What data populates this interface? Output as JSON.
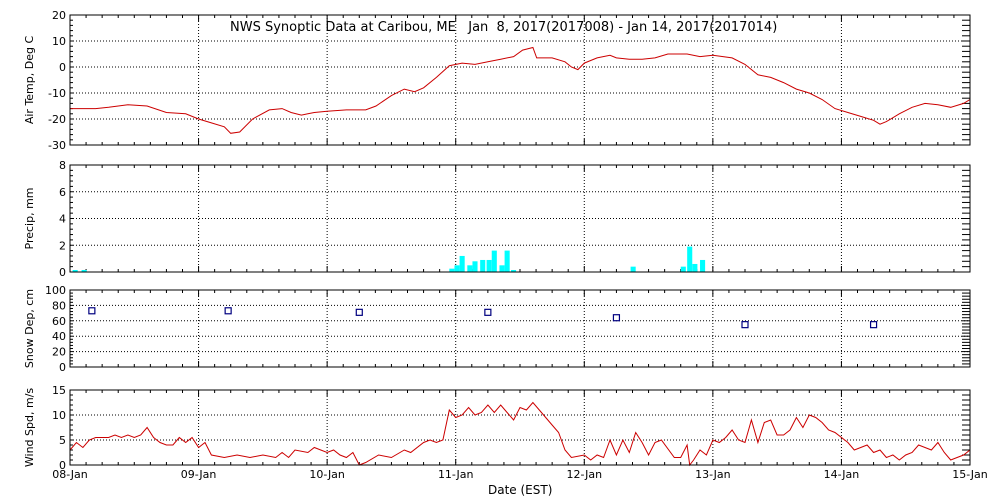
{
  "title": "NWS Synoptic Data at Caribou, ME   Jan  8, 2017(2017008) - Jan 14, 2017(2017014)",
  "xlabel": "Date (EST)",
  "x_ticks": [
    "08-Jan",
    "09-Jan",
    "10-Jan",
    "11-Jan",
    "12-Jan",
    "13-Jan",
    "14-Jan",
    "15-Jan"
  ],
  "colors": {
    "line": "#cc0000",
    "bar": "#00ffff",
    "marker": "#000080",
    "axis": "#000000"
  },
  "chart_data": [
    {
      "type": "line",
      "ylabel": "Air Temp, Deg C",
      "ylim": [
        -30,
        20
      ],
      "yticks": [
        -30,
        -20,
        -10,
        0,
        10,
        20
      ],
      "grid": true,
      "x_unit": "days since 08-Jan 00:00 EST",
      "points": [
        [
          0,
          -16
        ],
        [
          0.2,
          -16
        ],
        [
          0.3,
          -15.5
        ],
        [
          0.45,
          -14.5
        ],
        [
          0.6,
          -15
        ],
        [
          0.75,
          -17.5
        ],
        [
          0.9,
          -18
        ],
        [
          1.0,
          -20
        ],
        [
          1.1,
          -21.5
        ],
        [
          1.2,
          -23
        ],
        [
          1.25,
          -25.5
        ],
        [
          1.32,
          -25
        ],
        [
          1.42,
          -20
        ],
        [
          1.55,
          -16.5
        ],
        [
          1.65,
          -16
        ],
        [
          1.72,
          -17.5
        ],
        [
          1.8,
          -18.5
        ],
        [
          1.85,
          -18
        ],
        [
          1.9,
          -17.5
        ],
        [
          2.0,
          -17
        ],
        [
          2.15,
          -16.5
        ],
        [
          2.3,
          -16.5
        ],
        [
          2.38,
          -15
        ],
        [
          2.5,
          -11
        ],
        [
          2.6,
          -8.5
        ],
        [
          2.68,
          -9.5
        ],
        [
          2.75,
          -8
        ],
        [
          2.85,
          -4
        ],
        [
          2.95,
          0.5
        ],
        [
          3.05,
          1.5
        ],
        [
          3.15,
          1
        ],
        [
          3.25,
          2
        ],
        [
          3.35,
          3
        ],
        [
          3.45,
          4
        ],
        [
          3.52,
          6.5
        ],
        [
          3.6,
          7.5
        ],
        [
          3.63,
          3.5
        ],
        [
          3.75,
          3.5
        ],
        [
          3.85,
          2
        ],
        [
          3.9,
          0
        ],
        [
          3.95,
          -1
        ],
        [
          4.0,
          1.5
        ],
        [
          4.1,
          3.5
        ],
        [
          4.2,
          4.5
        ],
        [
          4.25,
          3.5
        ],
        [
          4.35,
          3
        ],
        [
          4.45,
          3
        ],
        [
          4.55,
          3.5
        ],
        [
          4.65,
          5
        ],
        [
          4.8,
          5
        ],
        [
          4.9,
          4
        ],
        [
          5.0,
          4.5
        ],
        [
          5.15,
          3.5
        ],
        [
          5.25,
          1
        ],
        [
          5.35,
          -3
        ],
        [
          5.45,
          -4
        ],
        [
          5.55,
          -6
        ],
        [
          5.65,
          -8.5
        ],
        [
          5.75,
          -10
        ],
        [
          5.85,
          -12.5
        ],
        [
          5.95,
          -16
        ],
        [
          6.05,
          -17.5
        ],
        [
          6.15,
          -19
        ],
        [
          6.25,
          -20.5
        ],
        [
          6.3,
          -22
        ],
        [
          6.35,
          -21
        ],
        [
          6.45,
          -18
        ],
        [
          6.55,
          -15.5
        ],
        [
          6.65,
          -14
        ],
        [
          6.75,
          -14.5
        ],
        [
          6.85,
          -15.5
        ],
        [
          6.95,
          -14
        ],
        [
          7.0,
          -12.5
        ]
      ]
    },
    {
      "type": "bar",
      "ylabel": "Precip, mm",
      "ylim": [
        0,
        8
      ],
      "yticks": [
        0,
        2,
        4,
        6,
        8
      ],
      "grid": true,
      "x_unit": "days since 08-Jan 00:00 EST",
      "bars": [
        [
          0.04,
          0.15
        ],
        [
          0.11,
          0.15
        ],
        [
          2.97,
          0.25
        ],
        [
          3.01,
          0.5
        ],
        [
          3.05,
          1.2
        ],
        [
          3.11,
          0.5
        ],
        [
          3.15,
          0.8
        ],
        [
          3.21,
          0.9
        ],
        [
          3.26,
          0.9
        ],
        [
          3.3,
          1.6
        ],
        [
          3.36,
          0.5
        ],
        [
          3.4,
          1.6
        ],
        [
          3.45,
          0.15
        ],
        [
          4.38,
          0.4
        ],
        [
          4.77,
          0.4
        ],
        [
          4.82,
          1.9
        ],
        [
          4.86,
          0.6
        ],
        [
          4.92,
          0.9
        ]
      ]
    },
    {
      "type": "scatter",
      "ylabel": "Snow Dep, cm",
      "ylim": [
        0,
        100
      ],
      "yticks": [
        0,
        20,
        40,
        60,
        80,
        100
      ],
      "grid": true,
      "x_unit": "days since 08-Jan 00:00 EST",
      "points": [
        [
          0.17,
          73
        ],
        [
          1.23,
          73
        ],
        [
          2.25,
          71
        ],
        [
          3.25,
          71
        ],
        [
          4.25,
          64
        ],
        [
          5.25,
          55
        ],
        [
          6.25,
          55
        ]
      ]
    },
    {
      "type": "line",
      "ylabel": "Wind Spd, m/s",
      "ylim": [
        0,
        15
      ],
      "yticks": [
        0,
        5,
        10,
        15
      ],
      "grid": true,
      "x_unit": "days since 08-Jan 00:00 EST",
      "points": [
        [
          0,
          3
        ],
        [
          0.05,
          4.5
        ],
        [
          0.1,
          3.5
        ],
        [
          0.15,
          5
        ],
        [
          0.2,
          5.5
        ],
        [
          0.3,
          5.5
        ],
        [
          0.35,
          6
        ],
        [
          0.4,
          5.5
        ],
        [
          0.45,
          6
        ],
        [
          0.5,
          5.5
        ],
        [
          0.55,
          6
        ],
        [
          0.6,
          7.5
        ],
        [
          0.65,
          5.5
        ],
        [
          0.7,
          4.5
        ],
        [
          0.75,
          4
        ],
        [
          0.8,
          4
        ],
        [
          0.85,
          5.5
        ],
        [
          0.9,
          4.5
        ],
        [
          0.95,
          5.5
        ],
        [
          1.0,
          3.5
        ],
        [
          1.05,
          4.5
        ],
        [
          1.1,
          2
        ],
        [
          1.2,
          1.5
        ],
        [
          1.3,
          2
        ],
        [
          1.4,
          1.5
        ],
        [
          1.5,
          2
        ],
        [
          1.6,
          1.5
        ],
        [
          1.65,
          2.5
        ],
        [
          1.7,
          1.5
        ],
        [
          1.75,
          3
        ],
        [
          1.85,
          2.5
        ],
        [
          1.9,
          3.5
        ],
        [
          2.0,
          2.5
        ],
        [
          2.05,
          3
        ],
        [
          2.1,
          2
        ],
        [
          2.15,
          1.5
        ],
        [
          2.2,
          2.5
        ],
        [
          2.25,
          0
        ],
        [
          2.3,
          0.5
        ],
        [
          2.4,
          2
        ],
        [
          2.5,
          1.5
        ],
        [
          2.6,
          3
        ],
        [
          2.65,
          2.5
        ],
        [
          2.75,
          4.5
        ],
        [
          2.8,
          5
        ],
        [
          2.85,
          4.5
        ],
        [
          2.9,
          5
        ],
        [
          2.95,
          11
        ],
        [
          3.0,
          9.5
        ],
        [
          3.05,
          10
        ],
        [
          3.1,
          11.5
        ],
        [
          3.15,
          10
        ],
        [
          3.2,
          10.5
        ],
        [
          3.25,
          12
        ],
        [
          3.3,
          10.5
        ],
        [
          3.35,
          12
        ],
        [
          3.4,
          10.5
        ],
        [
          3.45,
          9
        ],
        [
          3.5,
          11.5
        ],
        [
          3.55,
          11
        ],
        [
          3.6,
          12.5
        ],
        [
          3.65,
          11
        ],
        [
          3.7,
          9.5
        ],
        [
          3.75,
          8
        ],
        [
          3.8,
          6.5
        ],
        [
          3.85,
          3
        ],
        [
          3.9,
          1.5
        ],
        [
          4.0,
          2
        ],
        [
          4.05,
          1
        ],
        [
          4.1,
          2
        ],
        [
          4.15,
          1.5
        ],
        [
          4.2,
          5
        ],
        [
          4.25,
          2
        ],
        [
          4.3,
          5
        ],
        [
          4.35,
          2.5
        ],
        [
          4.4,
          6.5
        ],
        [
          4.45,
          4.5
        ],
        [
          4.5,
          2
        ],
        [
          4.55,
          4.5
        ],
        [
          4.6,
          5
        ],
        [
          4.7,
          1.5
        ],
        [
          4.75,
          1.5
        ],
        [
          4.8,
          4
        ],
        [
          4.82,
          0
        ],
        [
          4.85,
          1
        ],
        [
          4.9,
          3
        ],
        [
          4.95,
          2
        ],
        [
          5.0,
          5
        ],
        [
          5.05,
          4.5
        ],
        [
          5.1,
          5.5
        ],
        [
          5.15,
          7
        ],
        [
          5.2,
          5
        ],
        [
          5.25,
          4.5
        ],
        [
          5.3,
          9
        ],
        [
          5.35,
          4.5
        ],
        [
          5.4,
          8.5
        ],
        [
          5.45,
          9
        ],
        [
          5.5,
          6
        ],
        [
          5.55,
          6
        ],
        [
          5.6,
          7
        ],
        [
          5.65,
          9.5
        ],
        [
          5.7,
          7.5
        ],
        [
          5.75,
          10
        ],
        [
          5.8,
          9.5
        ],
        [
          5.85,
          8.5
        ],
        [
          5.9,
          7
        ],
        [
          5.95,
          6.5
        ],
        [
          6.05,
          4.5
        ],
        [
          6.1,
          3
        ],
        [
          6.15,
          3.5
        ],
        [
          6.2,
          4
        ],
        [
          6.25,
          2.5
        ],
        [
          6.3,
          3
        ],
        [
          6.35,
          1.5
        ],
        [
          6.4,
          2
        ],
        [
          6.45,
          1
        ],
        [
          6.5,
          2
        ],
        [
          6.55,
          2.5
        ],
        [
          6.6,
          4
        ],
        [
          6.7,
          3
        ],
        [
          6.75,
          4.5
        ],
        [
          6.8,
          2.5
        ],
        [
          6.85,
          1
        ],
        [
          6.9,
          1.5
        ],
        [
          6.95,
          2
        ],
        [
          7.0,
          3
        ]
      ]
    }
  ]
}
